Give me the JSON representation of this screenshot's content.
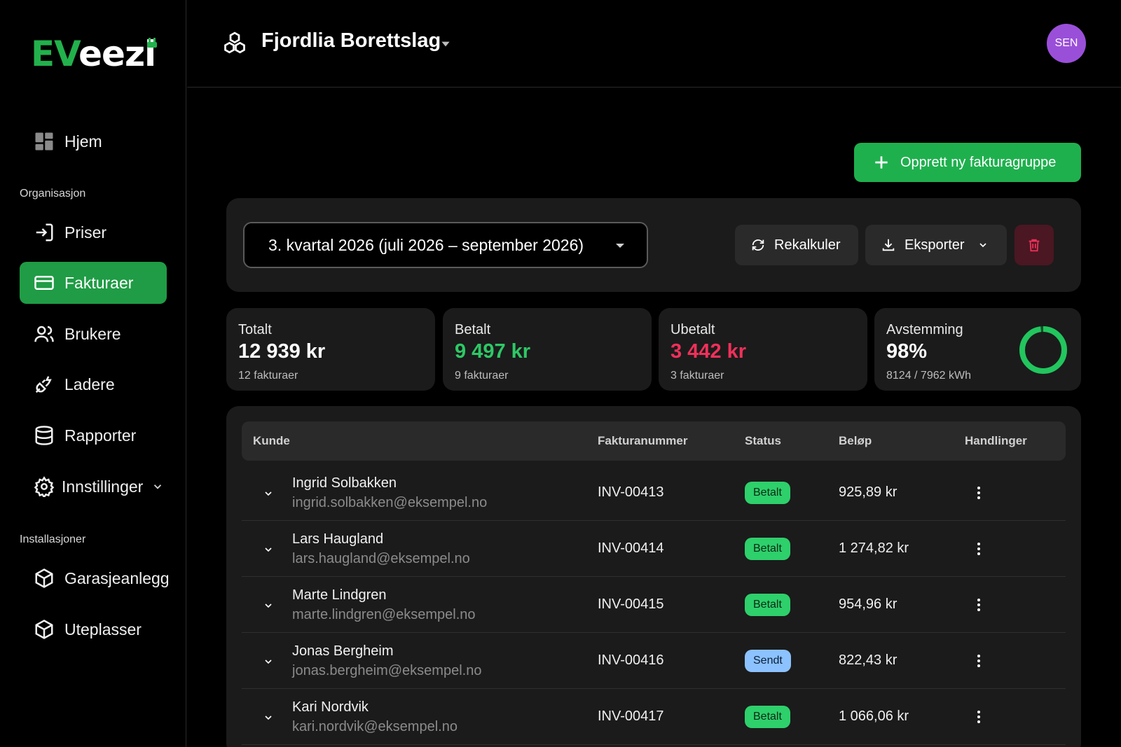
{
  "brand": {
    "logo_ev": "EV",
    "logo_eezi": "eezi",
    "accent": "#22b14c"
  },
  "sidebar": {
    "home": "Hjem",
    "section_org": "Organisasjon",
    "prices": "Priser",
    "invoices": "Fakturaer",
    "users": "Brukere",
    "chargers": "Ladere",
    "reports": "Rapporter",
    "settings": "Innstillinger",
    "section_inst": "Installasjoner",
    "garage": "Garasjeanlegg",
    "outdoor": "Uteplasser"
  },
  "header": {
    "org_title": "Fjordlia Borettslag",
    "avatar": "SEN"
  },
  "actions": {
    "create": "Opprett ny fakturagruppe",
    "period": "3. kvartal 2026 (juli 2026 – september 2026)",
    "recalc": "Rekalkuler",
    "export": "Eksporter"
  },
  "stats": {
    "total": {
      "label": "Totalt",
      "value": "12 939 kr",
      "sub": "12 fakturaer"
    },
    "paid": {
      "label": "Betalt",
      "value": "9 497 kr",
      "sub": "9 fakturaer"
    },
    "unpaid": {
      "label": "Ubetalt",
      "value": "3 442 kr",
      "sub": "3 fakturaer"
    },
    "recon": {
      "label": "Avstemming",
      "value": "98%",
      "sub": "8124 / 7962 kWh",
      "fraction": 0.98
    }
  },
  "table": {
    "headers": {
      "customer": "Kunde",
      "invoice": "Fakturanummer",
      "status": "Status",
      "amount": "Beløp",
      "actions": "Handlinger"
    },
    "rows": [
      {
        "name": "Ingrid Solbakken",
        "email": "ingrid.solbakken@eksempel.no",
        "invoice": "INV-00413",
        "status": "Betalt",
        "amount": "925,89 kr"
      },
      {
        "name": "Lars Haugland",
        "email": "lars.haugland@eksempel.no",
        "invoice": "INV-00414",
        "status": "Betalt",
        "amount": "1 274,82 kr"
      },
      {
        "name": "Marte Lindgren",
        "email": "marte.lindgren@eksempel.no",
        "invoice": "INV-00415",
        "status": "Betalt",
        "amount": "954,96 kr"
      },
      {
        "name": "Jonas Bergheim",
        "email": "jonas.bergheim@eksempel.no",
        "invoice": "INV-00416",
        "status": "Sendt",
        "amount": "822,43 kr"
      },
      {
        "name": "Kari Nordvik",
        "email": "kari.nordvik@eksempel.no",
        "invoice": "INV-00417",
        "status": "Betalt",
        "amount": "1 066,06 kr"
      }
    ]
  }
}
